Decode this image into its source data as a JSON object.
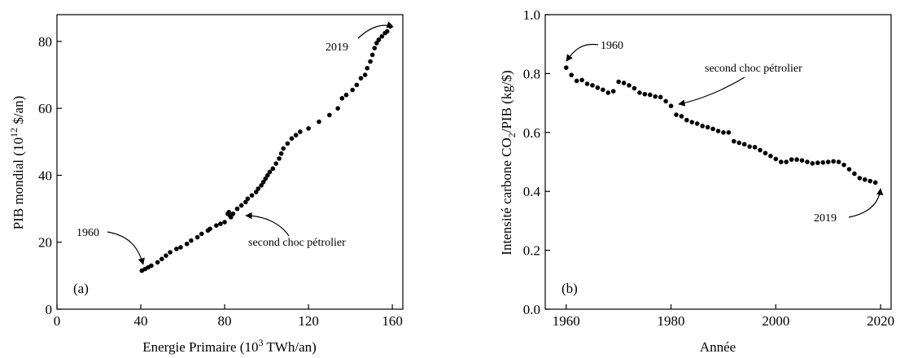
{
  "chart_data": [
    {
      "type": "scatter",
      "panel_label": "(a)",
      "xlabel": "Energie Primaire (10",
      "xlabel_sup": "3",
      "xlabel_end": " TWh/an)",
      "ylabel": "PIB mondial (10",
      "ylabel_sup": "12",
      "ylabel_end": " $/an)",
      "xlim": [
        0,
        165
      ],
      "ylim": [
        0,
        88
      ],
      "xticks": [
        0,
        40,
        80,
        120,
        160
      ],
      "yticks": [
        0,
        20,
        40,
        60,
        80
      ],
      "annotations": [
        {
          "text": "1960",
          "target": [
            40.5,
            11.5
          ]
        },
        {
          "text": "second choc pétrolier",
          "target": [
            84,
            27.5
          ]
        },
        {
          "text": "2019",
          "target": [
            159,
            84.5
          ]
        }
      ],
      "x": [
        40.5,
        42,
        43.5,
        45,
        48,
        50,
        52,
        54,
        57,
        59,
        62,
        64,
        67,
        69,
        72,
        73,
        76,
        78,
        80,
        81.5,
        82,
        82.5,
        83,
        84,
        86,
        88,
        90,
        91,
        93,
        95,
        96,
        97.5,
        98.5,
        99.5,
        100.5,
        101.5,
        103,
        104.5,
        106,
        107,
        108,
        110,
        112,
        114,
        116,
        120,
        125,
        130,
        134,
        136,
        138,
        141,
        143,
        145,
        147,
        148,
        149.5,
        150.5,
        151.5,
        152.5,
        153.5,
        155,
        156.5,
        157.5,
        159
      ],
      "y": [
        11.5,
        12,
        12.5,
        13,
        14,
        15,
        16,
        17,
        18,
        18.5,
        19.5,
        20.5,
        21.5,
        22.5,
        23.5,
        24,
        25,
        25.5,
        26,
        28.5,
        29,
        28,
        27.5,
        28.5,
        30,
        31,
        32,
        33,
        34,
        35,
        36,
        37,
        38,
        39,
        40,
        41,
        42,
        43.5,
        45,
        46.5,
        48,
        49.5,
        51,
        52,
        53,
        54,
        56,
        58,
        60,
        63,
        64,
        65.5,
        67,
        69,
        70,
        72,
        74,
        76,
        78,
        79.5,
        80.5,
        81.5,
        82.5,
        83,
        84.5
      ]
    },
    {
      "type": "scatter",
      "panel_label": "(b)",
      "xlabel": "Année",
      "ylabel": "Intensité carbone CO",
      "ylabel_sub": "2",
      "ylabel_end": "/PIB (kg/$)",
      "xlim": [
        1956,
        2022
      ],
      "ylim": [
        0,
        1
      ],
      "xticks": [
        1960,
        1980,
        2000,
        2020
      ],
      "yticks": [
        0.0,
        0.2,
        0.4,
        0.6,
        0.8,
        1.0
      ],
      "ytick_labels": [
        "0.0",
        "0.2",
        "0.4",
        "0.6",
        "0.8",
        "1.0"
      ],
      "annotations": [
        {
          "text": "1960",
          "target": [
            1960,
            0.82
          ]
        },
        {
          "text": "second choc pétrolier",
          "target": [
            1981,
            0.69
          ]
        },
        {
          "text": "2019",
          "target": [
            2019,
            0.43
          ]
        }
      ],
      "x": [
        1960,
        1961,
        1962,
        1963,
        1964,
        1965,
        1966,
        1967,
        1968,
        1969,
        1970,
        1971,
        1972,
        1973,
        1974,
        1975,
        1976,
        1977,
        1978,
        1979,
        1980,
        1981,
        1982,
        1983,
        1984,
        1985,
        1986,
        1987,
        1988,
        1989,
        1990,
        1991,
        1992,
        1993,
        1994,
        1995,
        1996,
        1997,
        1998,
        1999,
        2000,
        2001,
        2002,
        2003,
        2004,
        2005,
        2006,
        2007,
        2008,
        2009,
        2010,
        2011,
        2012,
        2013,
        2014,
        2015,
        2016,
        2017,
        2018,
        2019
      ],
      "y": [
        0.82,
        0.795,
        0.775,
        0.778,
        0.765,
        0.76,
        0.752,
        0.745,
        0.735,
        0.74,
        0.772,
        0.768,
        0.76,
        0.75,
        0.735,
        0.73,
        0.728,
        0.722,
        0.72,
        0.706,
        0.69,
        0.66,
        0.655,
        0.642,
        0.635,
        0.63,
        0.622,
        0.618,
        0.612,
        0.605,
        0.6,
        0.6,
        0.57,
        0.565,
        0.56,
        0.552,
        0.55,
        0.54,
        0.53,
        0.52,
        0.51,
        0.5,
        0.5,
        0.508,
        0.508,
        0.505,
        0.5,
        0.495,
        0.497,
        0.498,
        0.5,
        0.502,
        0.5,
        0.49,
        0.475,
        0.46,
        0.445,
        0.44,
        0.435,
        0.43
      ]
    }
  ]
}
